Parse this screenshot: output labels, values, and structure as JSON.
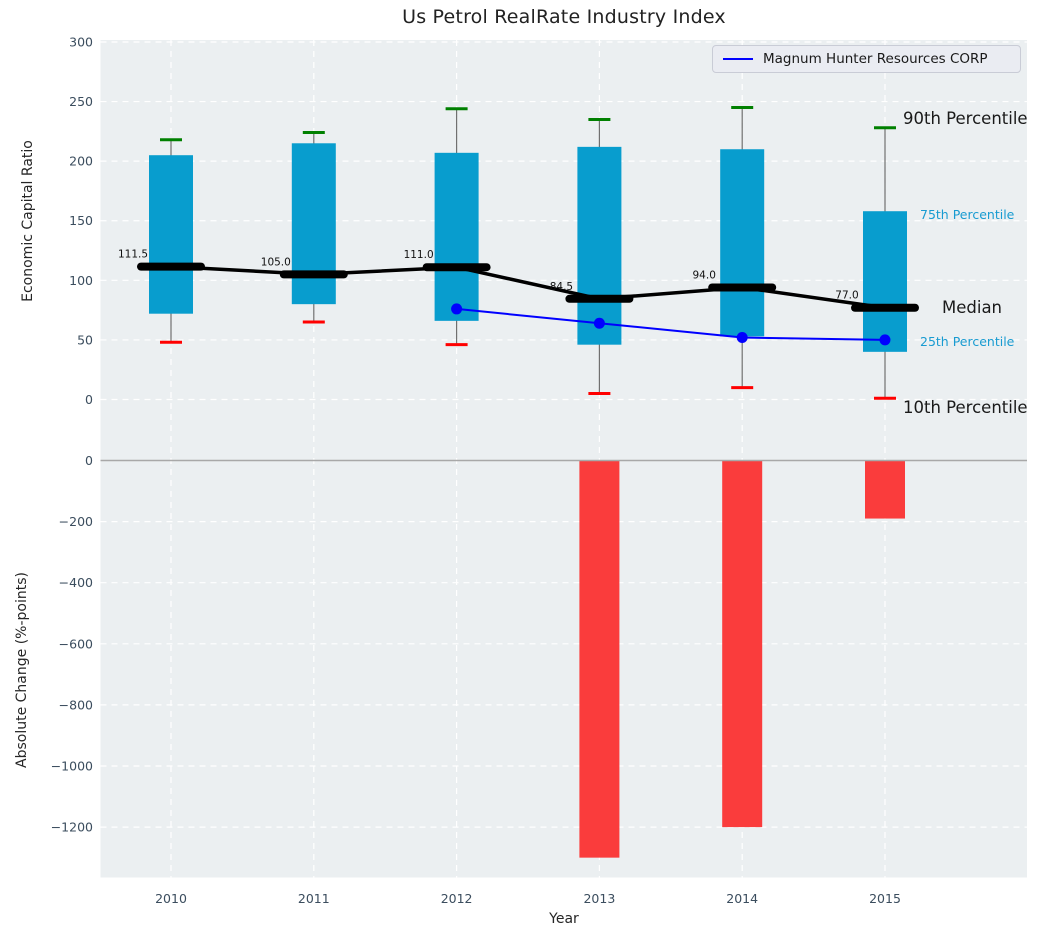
{
  "title": "Us Petrol RealRate Industry Index",
  "legend": {
    "label": "Magnum Hunter Resources CORP",
    "line_color": "#0000ff"
  },
  "colors": {
    "plot_bg": "#ebeff1",
    "grid": "#ffffff",
    "box_fill": "#089dce",
    "whisker_line": "#707070",
    "cap_90th": "#008000",
    "cap_10th": "#ff0000",
    "median_line": "#000000",
    "company_line": "#0000ff",
    "bar_fill": "#fa3c3c",
    "zero_line": "#a8a8a8",
    "tick_text": "#3b4d5e",
    "annotation_big_text": "#1a1a1a",
    "annotation_small_text": "#189bd1",
    "median_value_text": "#111111"
  },
  "chart_data": [
    {
      "type": "boxplot",
      "title": "Us Petrol RealRate Industry Index",
      "ylabel": "Economic Capital Ratio",
      "categories": [
        "2010",
        "2011",
        "2012",
        "2013",
        "2014",
        "2015"
      ],
      "yticks": [
        0,
        50,
        100,
        150,
        200,
        250,
        300
      ],
      "ylim": [
        -35,
        302
      ],
      "grid": true,
      "percentiles": {
        "p90": [
          218,
          224,
          244,
          235,
          245,
          228
        ],
        "p75": [
          205,
          215,
          207,
          212,
          210,
          158
        ],
        "median": [
          111.5,
          105.0,
          111.0,
          84.5,
          94.0,
          77.0
        ],
        "p25": [
          72,
          80,
          66,
          46,
          53,
          40
        ],
        "p10": [
          48,
          65,
          46,
          5,
          10,
          1
        ]
      },
      "median_labels": [
        "111.5",
        "105.0",
        "111.0",
        "84.5",
        "94.0",
        "77.0"
      ],
      "series": [
        {
          "name": "Magnum Hunter Resources CORP",
          "x": [
            "2012",
            "2013",
            "2014",
            "2015"
          ],
          "values": [
            76,
            64,
            52,
            50
          ]
        }
      ],
      "annotations": {
        "p90": "90th Percentile",
        "p75": "75th Percentile",
        "median": "Median",
        "p25": "25th Percentile",
        "p10": "10th Percentile"
      },
      "legend_position": "upper right"
    },
    {
      "type": "bar",
      "xlabel": "Year",
      "ylabel": "Absolute Change (%-points)",
      "categories": [
        "2010",
        "2011",
        "2012",
        "2013",
        "2014",
        "2015"
      ],
      "values": [
        null,
        null,
        null,
        -1300,
        -1200,
        -190
      ],
      "yticks": [
        0,
        -200,
        -400,
        -600,
        -800,
        -1000,
        -1200
      ],
      "ylim": [
        -1365,
        5
      ],
      "grid": true,
      "zero_line": true
    }
  ]
}
